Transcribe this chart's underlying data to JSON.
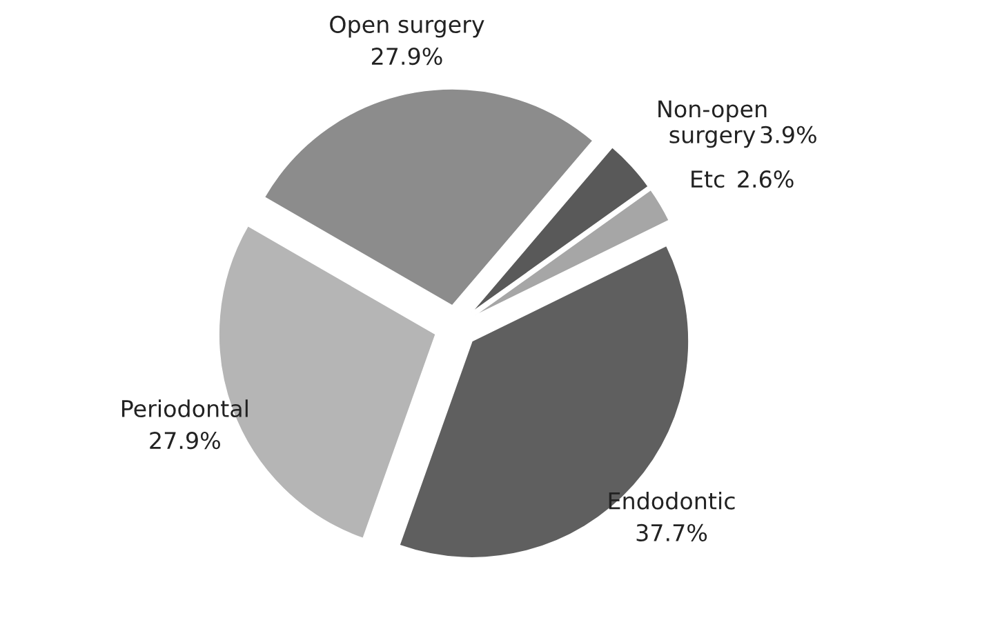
{
  "chart_data": {
    "type": "pie",
    "categories": [
      "Open surgery",
      "Non-open surgery",
      "Etc",
      "Endodontic",
      "Periodontal"
    ],
    "values": [
      27.9,
      3.9,
      2.6,
      37.7,
      27.9
    ],
    "colors": [
      "#8c8c8c",
      "#595959",
      "#a6a6a6",
      "#5f5f5f",
      "#b5b5b5"
    ],
    "value_labels": [
      "27.9%",
      "3.9%",
      "2.6%",
      "37.7%",
      "27.9%"
    ],
    "legend": false
  }
}
